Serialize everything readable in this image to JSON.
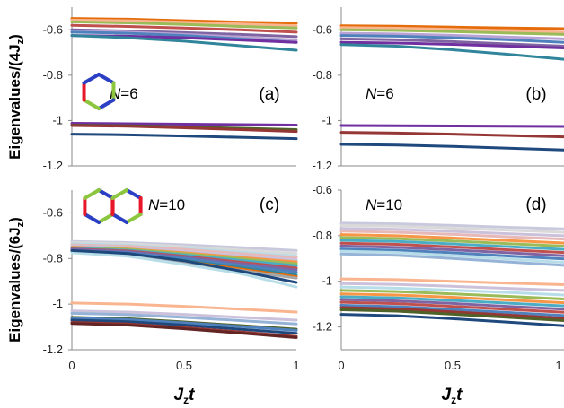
{
  "figure": {
    "y_label_top": "Eigenvalues/(4J",
    "y_label_top_sub": "z",
    "y_label_bottom": "Eigenvalues/(6J",
    "y_label_bottom_sub": "z",
    "y_label_close": ")",
    "x_label_left": "J",
    "x_label_left_sub": "z",
    "x_label_left_t": "t",
    "x_label_right": "J",
    "x_label_right_sub": "z",
    "x_label_right_t": "t"
  },
  "colors": {
    "red_bond": "#e8182a",
    "green_bond": "#8cc63e",
    "blue_bond": "#2a3fc4"
  },
  "chart_data": [
    {
      "type": "line",
      "panel": "(a)",
      "n_label": "N",
      "n_value": "=6",
      "ylim": [
        -1.2,
        -0.5
      ],
      "yticks": [
        -0.6,
        -0.8,
        -1,
        -1.2
      ],
      "ytick_labels": [
        "-0.6",
        "-0.8",
        "-1",
        "-1.2"
      ],
      "xlim": [
        0,
        1
      ],
      "x": [
        0,
        0.25,
        0.5,
        0.75,
        1
      ],
      "series": [
        {
          "color": "#e46c0a",
          "values": [
            -0.55,
            -0.553,
            -0.56,
            -0.566,
            -0.57
          ]
        },
        {
          "color": "#f9b58f",
          "values": [
            -0.557,
            -0.56,
            -0.566,
            -0.574,
            -0.582
          ]
        },
        {
          "color": "#9bbb59",
          "values": [
            -0.565,
            -0.569,
            -0.576,
            -0.585,
            -0.592
          ]
        },
        {
          "color": "#c0504d",
          "values": [
            -0.58,
            -0.585,
            -0.592,
            -0.6,
            -0.61
          ]
        },
        {
          "color": "#8064a2",
          "values": [
            -0.6,
            -0.605,
            -0.612,
            -0.62,
            -0.63
          ]
        },
        {
          "color": "#b9a3d4",
          "values": [
            -0.605,
            -0.61,
            -0.62,
            -0.632,
            -0.645
          ]
        },
        {
          "color": "#4f81bd",
          "values": [
            -0.61,
            -0.615,
            -0.625,
            -0.64,
            -0.655
          ]
        },
        {
          "color": "#7030a0",
          "values": [
            -0.625,
            -0.628,
            -0.635,
            -0.645,
            -0.655
          ]
        },
        {
          "color": "#31859b",
          "values": [
            -0.625,
            -0.635,
            -0.65,
            -0.67,
            -0.69
          ]
        },
        {
          "color": "#7030a0",
          "values": [
            -1.012,
            -1.014,
            -1.016,
            -1.018,
            -1.02
          ]
        },
        {
          "color": "#4f6228",
          "values": [
            -1.02,
            -1.023,
            -1.028,
            -1.034,
            -1.04
          ]
        },
        {
          "color": "#953735",
          "values": [
            -1.022,
            -1.025,
            -1.032,
            -1.04,
            -1.048
          ]
        },
        {
          "color": "#1f497d",
          "values": [
            -1.06,
            -1.063,
            -1.068,
            -1.074,
            -1.08
          ]
        }
      ]
    },
    {
      "type": "line",
      "panel": "(b)",
      "n_label": "N",
      "n_value": "=6",
      "ylim": [
        -1.2,
        -0.5
      ],
      "yticks": [
        -0.6,
        -0.8,
        -1,
        -1.2
      ],
      "ytick_labels": [
        "-0.6",
        "-0.8",
        "-1",
        "-1.2"
      ],
      "xlim": [
        0,
        1
      ],
      "x": [
        0,
        0.25,
        0.5,
        0.75,
        1
      ],
      "series": [
        {
          "color": "#e46c0a",
          "values": [
            -0.582,
            -0.584,
            -0.588,
            -0.592,
            -0.595
          ]
        },
        {
          "color": "#f9b58f",
          "values": [
            -0.59,
            -0.593,
            -0.598,
            -0.604,
            -0.61
          ]
        },
        {
          "color": "#9bbb59",
          "values": [
            -0.6,
            -0.603,
            -0.608,
            -0.614,
            -0.62
          ]
        },
        {
          "color": "#b9a3d4",
          "values": [
            -0.615,
            -0.618,
            -0.624,
            -0.632,
            -0.64
          ]
        },
        {
          "color": "#4f81bd",
          "values": [
            -0.625,
            -0.628,
            -0.635,
            -0.644,
            -0.655
          ]
        },
        {
          "color": "#8064a2",
          "values": [
            -0.64,
            -0.644,
            -0.652,
            -0.662,
            -0.672
          ]
        },
        {
          "color": "#7030a0",
          "values": [
            -0.655,
            -0.658,
            -0.664,
            -0.672,
            -0.68
          ]
        },
        {
          "color": "#31859b",
          "values": [
            -0.665,
            -0.672,
            -0.688,
            -0.708,
            -0.73
          ]
        },
        {
          "color": "#7030a0",
          "values": [
            -1.022,
            -1.023,
            -1.024,
            -1.025,
            -1.026
          ]
        },
        {
          "color": "#953735",
          "values": [
            -1.052,
            -1.055,
            -1.06,
            -1.066,
            -1.072
          ]
        },
        {
          "color": "#1f497d",
          "values": [
            -1.105,
            -1.108,
            -1.114,
            -1.122,
            -1.13
          ]
        }
      ]
    },
    {
      "type": "line",
      "panel": "(c)",
      "n_label": "N",
      "n_value": "=10",
      "ylim": [
        -1.2,
        -0.5
      ],
      "yticks": [
        -0.6,
        -0.8,
        -1,
        -1.2
      ],
      "ytick_labels": [
        "-0.6",
        "-0.8",
        "-1",
        "-1.2"
      ],
      "xlim": [
        0,
        1
      ],
      "x": [
        0,
        0.25,
        0.5,
        0.75,
        1
      ],
      "series": [
        {
          "color": "#c9c9dd",
          "values": [
            -0.725,
            -0.73,
            -0.74,
            -0.752,
            -0.765
          ]
        },
        {
          "color": "#d9d9d9",
          "values": [
            -0.73,
            -0.735,
            -0.748,
            -0.763,
            -0.778
          ]
        },
        {
          "color": "#b7dde8",
          "values": [
            -0.735,
            -0.742,
            -0.756,
            -0.772,
            -0.79
          ]
        },
        {
          "color": "#e6b9b8",
          "values": [
            -0.74,
            -0.746,
            -0.76,
            -0.778,
            -0.796
          ]
        },
        {
          "color": "#ccc1da",
          "values": [
            -0.745,
            -0.752,
            -0.768,
            -0.787,
            -0.806
          ]
        },
        {
          "color": "#f79646",
          "values": [
            -0.75,
            -0.758,
            -0.775,
            -0.795,
            -0.815
          ]
        },
        {
          "color": "#9bbb59",
          "values": [
            -0.752,
            -0.76,
            -0.779,
            -0.801,
            -0.823
          ]
        },
        {
          "color": "#4bacc6",
          "values": [
            -0.755,
            -0.764,
            -0.784,
            -0.808,
            -0.832
          ]
        },
        {
          "color": "#c0504d",
          "values": [
            -0.758,
            -0.767,
            -0.79,
            -0.816,
            -0.842
          ]
        },
        {
          "color": "#8064a2",
          "values": [
            -0.76,
            -0.77,
            -0.794,
            -0.822,
            -0.85
          ]
        },
        {
          "color": "#4f81bd",
          "values": [
            -0.765,
            -0.775,
            -0.8,
            -0.83,
            -0.86
          ]
        },
        {
          "color": "#31859b",
          "values": [
            -0.768,
            -0.78,
            -0.808,
            -0.84,
            -0.872
          ]
        },
        {
          "color": "#e46c0a",
          "values": [
            -0.77,
            -0.782,
            -0.812,
            -0.846,
            -0.88
          ]
        },
        {
          "color": "#a5a5a5",
          "values": [
            -0.772,
            -0.786,
            -0.818,
            -0.852,
            -0.886
          ]
        },
        {
          "color": "#b7dde8",
          "values": [
            -0.775,
            -0.79,
            -0.826,
            -0.866,
            -0.925
          ]
        },
        {
          "color": "#1f497d",
          "values": [
            -0.765,
            -0.778,
            -0.81,
            -0.855,
            -0.905
          ]
        },
        {
          "color": "#f9b58f",
          "values": [
            -0.995,
            -1.0,
            -1.01,
            -1.022,
            -1.035
          ]
        },
        {
          "color": "#ccc1da",
          "values": [
            -1.03,
            -1.035,
            -1.045,
            -1.058,
            -1.07
          ]
        },
        {
          "color": "#95b3d7",
          "values": [
            -1.04,
            -1.046,
            -1.058,
            -1.072,
            -1.087
          ]
        },
        {
          "color": "#4f6228",
          "values": [
            -1.058,
            -1.064,
            -1.078,
            -1.094,
            -1.11
          ]
        },
        {
          "color": "#4f81bd",
          "values": [
            -1.062,
            -1.068,
            -1.082,
            -1.098,
            -1.115
          ]
        },
        {
          "color": "#1f497d",
          "values": [
            -1.07,
            -1.077,
            -1.092,
            -1.11,
            -1.128
          ]
        },
        {
          "color": "#953735",
          "values": [
            -1.08,
            -1.087,
            -1.103,
            -1.122,
            -1.142
          ]
        },
        {
          "color": "#632523",
          "values": [
            -1.085,
            -1.092,
            -1.108,
            -1.127,
            -1.147
          ]
        }
      ]
    },
    {
      "type": "line",
      "panel": "(d)",
      "n_label": "N",
      "n_value": "=10",
      "ylim": [
        -1.3,
        -0.6
      ],
      "yticks": [
        -0.6,
        -0.8,
        -1,
        -1.2
      ],
      "ytick_labels": [
        "-0.6",
        "-0.8",
        "-1",
        "-1.2"
      ],
      "xlim": [
        0,
        1
      ],
      "x": [
        0,
        0.25,
        0.5,
        0.75,
        1
      ],
      "series": [
        {
          "color": "#c9c9dd",
          "values": [
            -0.745,
            -0.748,
            -0.755,
            -0.763,
            -0.77
          ]
        },
        {
          "color": "#d9d9d9",
          "values": [
            -0.755,
            -0.759,
            -0.767,
            -0.776,
            -0.785
          ]
        },
        {
          "color": "#ccc1da",
          "values": [
            -0.768,
            -0.772,
            -0.781,
            -0.791,
            -0.8
          ]
        },
        {
          "color": "#e6b9b8",
          "values": [
            -0.78,
            -0.785,
            -0.794,
            -0.805,
            -0.815
          ]
        },
        {
          "color": "#f79646",
          "values": [
            -0.795,
            -0.8,
            -0.81,
            -0.821,
            -0.832
          ]
        },
        {
          "color": "#9bbb59",
          "values": [
            -0.808,
            -0.813,
            -0.823,
            -0.835,
            -0.846
          ]
        },
        {
          "color": "#4bacc6",
          "values": [
            -0.82,
            -0.825,
            -0.836,
            -0.848,
            -0.86
          ]
        },
        {
          "color": "#c0504d",
          "values": [
            -0.833,
            -0.838,
            -0.849,
            -0.862,
            -0.874
          ]
        },
        {
          "color": "#8064a2",
          "values": [
            -0.845,
            -0.851,
            -0.862,
            -0.875,
            -0.888
          ]
        },
        {
          "color": "#4f81bd",
          "values": [
            -0.858,
            -0.864,
            -0.875,
            -0.889,
            -0.902
          ]
        },
        {
          "color": "#b7dde8",
          "values": [
            -0.868,
            -0.874,
            -0.887,
            -0.902,
            -0.917
          ]
        },
        {
          "color": "#95b3d7",
          "values": [
            -0.88,
            -0.886,
            -0.9,
            -0.915,
            -0.93
          ]
        },
        {
          "color": "#f9b58f",
          "values": [
            -0.99,
            -0.993,
            -1.0,
            -1.008,
            -1.015
          ]
        },
        {
          "color": "#ccc1da",
          "values": [
            -1.01,
            -1.014,
            -1.022,
            -1.031,
            -1.04
          ]
        },
        {
          "color": "#b7dde8",
          "values": [
            -1.025,
            -1.03,
            -1.039,
            -1.049,
            -1.06
          ]
        },
        {
          "color": "#9bbb59",
          "values": [
            -1.04,
            -1.045,
            -1.055,
            -1.066,
            -1.078
          ]
        },
        {
          "color": "#f79646",
          "values": [
            -1.055,
            -1.06,
            -1.07,
            -1.082,
            -1.094
          ]
        },
        {
          "color": "#4bacc6",
          "values": [
            -1.068,
            -1.073,
            -1.084,
            -1.096,
            -1.108
          ]
        },
        {
          "color": "#8064a2",
          "values": [
            -1.08,
            -1.086,
            -1.097,
            -1.11,
            -1.122
          ]
        },
        {
          "color": "#c0504d",
          "values": [
            -1.092,
            -1.098,
            -1.11,
            -1.123,
            -1.136
          ]
        },
        {
          "color": "#4f81bd",
          "values": [
            -1.105,
            -1.111,
            -1.123,
            -1.137,
            -1.15
          ]
        },
        {
          "color": "#953735",
          "values": [
            -1.115,
            -1.121,
            -1.134,
            -1.148,
            -1.162
          ]
        },
        {
          "color": "#4f6228",
          "values": [
            -1.125,
            -1.131,
            -1.144,
            -1.158,
            -1.172
          ]
        },
        {
          "color": "#1f497d",
          "values": [
            -1.145,
            -1.151,
            -1.164,
            -1.179,
            -1.195
          ]
        }
      ]
    }
  ]
}
